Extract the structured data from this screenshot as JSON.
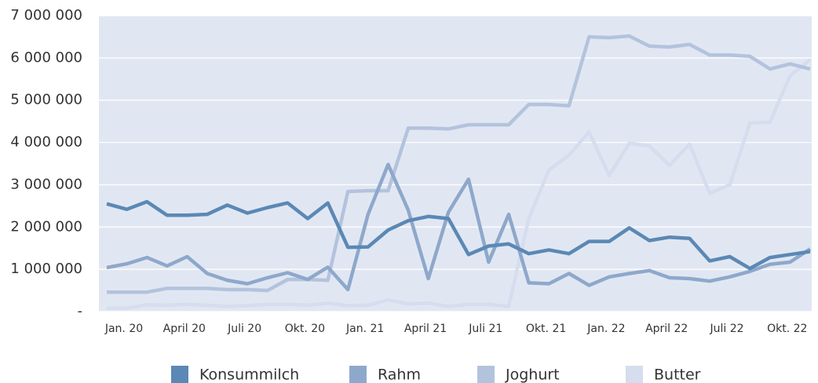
{
  "chart_data": {
    "type": "line",
    "categories": [
      "Jan. 20",
      null,
      null,
      "April 20",
      null,
      null,
      "Juli 20",
      null,
      null,
      "Okt. 20",
      null,
      null,
      "Jan. 21",
      null,
      null,
      "April 21",
      null,
      null,
      "Juli 21",
      null,
      null,
      "Okt. 21",
      null,
      null,
      "Jan. 22",
      null,
      null,
      "April 22",
      null,
      null,
      "Juli 22",
      null,
      null,
      "Okt. 22",
      null,
      null
    ],
    "series": [
      {
        "name": "Konsummilch",
        "color": "#5b88b5",
        "values": [
          2550000,
          2420000,
          2600000,
          2280000,
          2280000,
          2300000,
          2520000,
          2330000,
          2460000,
          2570000,
          2200000,
          2570000,
          1520000,
          1530000,
          1930000,
          2150000,
          2250000,
          2200000,
          1350000,
          1550000,
          1600000,
          1370000,
          1460000,
          1370000,
          1660000,
          1660000,
          1980000,
          1680000,
          1760000,
          1730000,
          1200000,
          1300000,
          1020000,
          1280000,
          1350000,
          1420000
        ]
      },
      {
        "name": "Rahm",
        "color": "#8ea8cb",
        "values": [
          1040000,
          1130000,
          1280000,
          1080000,
          1300000,
          900000,
          740000,
          660000,
          800000,
          920000,
          760000,
          1050000,
          520000,
          2300000,
          3480000,
          2400000,
          780000,
          2350000,
          3130000,
          1170000,
          2300000,
          680000,
          660000,
          900000,
          620000,
          820000,
          900000,
          970000,
          800000,
          780000,
          720000,
          820000,
          950000,
          1120000,
          1170000,
          1480000
        ]
      },
      {
        "name": "Joghurt",
        "color": "#b3c3de",
        "values": [
          460000,
          460000,
          460000,
          550000,
          550000,
          550000,
          520000,
          520000,
          500000,
          760000,
          760000,
          740000,
          2840000,
          2860000,
          2860000,
          4340000,
          4340000,
          4320000,
          4420000,
          4420000,
          4420000,
          4900000,
          4900000,
          4870000,
          6500000,
          6480000,
          6520000,
          6280000,
          6260000,
          6320000,
          6070000,
          6070000,
          6040000,
          5740000,
          5860000,
          5740000
        ]
      },
      {
        "name": "Butter",
        "color": "#d5ddee",
        "values": [
          80000,
          80000,
          160000,
          150000,
          170000,
          150000,
          120000,
          140000,
          170000,
          170000,
          150000,
          200000,
          140000,
          150000,
          280000,
          180000,
          200000,
          120000,
          170000,
          170000,
          120000,
          2200000,
          3350000,
          3700000,
          4250000,
          3220000,
          3980000,
          3920000,
          3460000,
          3960000,
          2800000,
          3000000,
          4460000,
          4480000,
          5580000,
          5960000
        ]
      }
    ],
    "ylim": [
      0,
      7000000
    ],
    "yticks": [
      {
        "value": 0,
        "label": "-"
      },
      {
        "value": 1000000,
        "label": "1 000 000"
      },
      {
        "value": 2000000,
        "label": "2 000 000"
      },
      {
        "value": 3000000,
        "label": "3 000 000"
      },
      {
        "value": 4000000,
        "label": "4 000 000"
      },
      {
        "value": 5000000,
        "label": "5 000 000"
      },
      {
        "value": 6000000,
        "label": "6 000 000"
      },
      {
        "value": 7000000,
        "label": "7 000 000"
      }
    ],
    "grid": true,
    "legend": "bottom"
  }
}
